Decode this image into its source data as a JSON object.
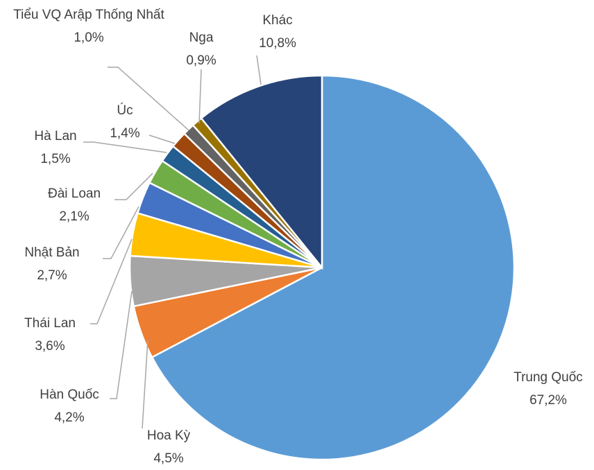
{
  "chart_data": {
    "type": "pie",
    "categories": [
      "Trung Quốc",
      "Hoa Kỳ",
      "Hàn Quốc",
      "Thái Lan",
      "Nhật Bản",
      "Đài Loan",
      "Hà Lan",
      "Úc",
      "Tiểu VQ Arập Thống Nhất",
      "Nga",
      "Khác"
    ],
    "values": [
      67.2,
      4.5,
      4.2,
      3.6,
      2.7,
      2.1,
      1.5,
      1.4,
      1.0,
      0.9,
      10.8
    ],
    "value_labels": [
      "67,2%",
      "4,5%",
      "4,2%",
      "3,6%",
      "2,7%",
      "2,1%",
      "1,5%",
      "1,4%",
      "1,0%",
      "0,9%",
      "10,8%"
    ],
    "colors": [
      "#5b9bd5",
      "#ed7d31",
      "#a5a5a5",
      "#ffc000",
      "#4472c4",
      "#70ad47",
      "#255e91",
      "#9e480e",
      "#636363",
      "#997300",
      "#264478"
    ]
  }
}
